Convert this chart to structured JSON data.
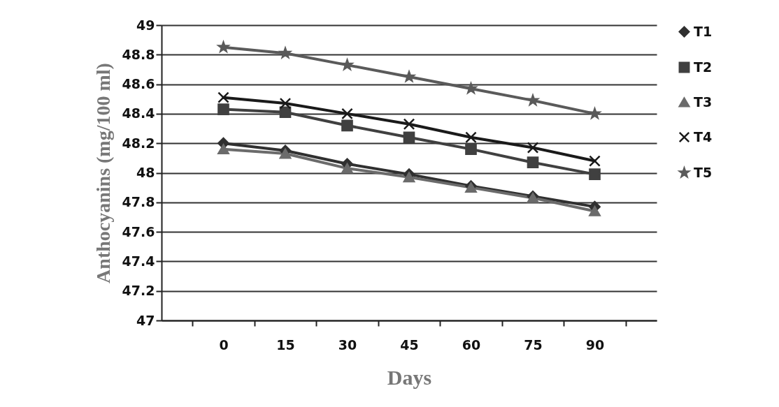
{
  "chart_data": {
    "type": "line",
    "xlabel": "Days",
    "ylabel": "Anthocyanins (mg/100 ml)",
    "categories": [
      "0",
      "15",
      "30",
      "45",
      "60",
      "75",
      "90"
    ],
    "ylim": [
      47,
      49
    ],
    "yticks": [
      47,
      47.2,
      47.4,
      47.6,
      47.8,
      48,
      48.2,
      48.4,
      48.6,
      48.8,
      49
    ],
    "grid": "y",
    "legend": "right",
    "series": [
      {
        "name": "T1",
        "color": "#303030",
        "marker": "diamond",
        "values": [
          48.2,
          48.15,
          48.06,
          47.99,
          47.91,
          47.84,
          47.77
        ]
      },
      {
        "name": "T2",
        "color": "#404040",
        "marker": "square",
        "values": [
          48.43,
          48.41,
          48.32,
          48.24,
          48.16,
          48.07,
          47.99
        ]
      },
      {
        "name": "T3",
        "color": "#6b6b6b",
        "marker": "triangle",
        "values": [
          48.16,
          48.13,
          48.03,
          47.97,
          47.9,
          47.83,
          47.74
        ]
      },
      {
        "name": "T4",
        "color": "#1a1a1a",
        "marker": "cross",
        "values": [
          48.51,
          48.47,
          48.4,
          48.33,
          48.24,
          48.17,
          48.08
        ]
      },
      {
        "name": "T5",
        "color": "#5a5a5a",
        "marker": "star",
        "values": [
          48.85,
          48.81,
          48.73,
          48.65,
          48.57,
          48.49,
          48.4
        ]
      }
    ]
  }
}
